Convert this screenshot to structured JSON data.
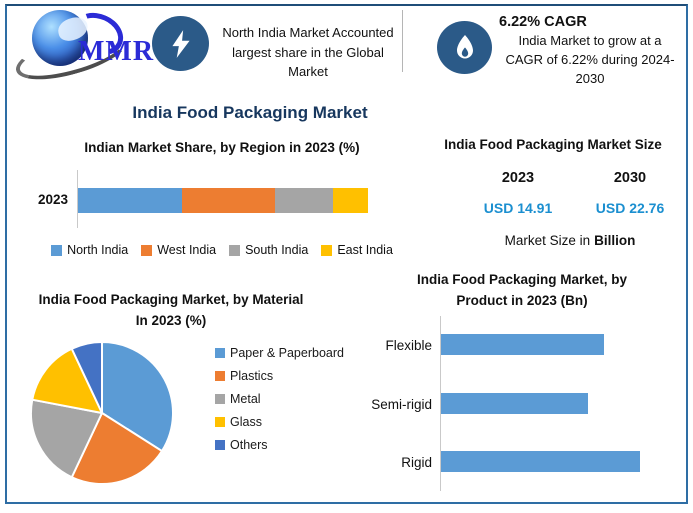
{
  "brand": {
    "name": "MMR"
  },
  "header": {
    "fact1": {
      "text": "North India Market Accounted largest share in the Global Market"
    },
    "fact2": {
      "title": "6.22% CAGR",
      "text": "India Market to grow at a CAGR of 6.22% during 2024-2030"
    }
  },
  "page_title": "India Food Packaging Market",
  "colors": {
    "title_navy": "#17375e",
    "icon_circle_blue": "#2b5a88",
    "value_blue": "#1b8fd0",
    "frame_blue": "#2e6da4",
    "bar_blue": "#5b9bd5"
  },
  "chart_data": [
    {
      "id": "region-share",
      "type": "bar",
      "orientation": "horizontal-stacked",
      "title": "Indian Market Share, by Region in 2023 (%)",
      "categories": [
        "2023"
      ],
      "series": [
        {
          "name": "North India",
          "color": "#5b9bd5",
          "values": [
            36
          ]
        },
        {
          "name": "West India",
          "color": "#ed7d31",
          "values": [
            32
          ]
        },
        {
          "name": "South India",
          "color": "#a5a5a5",
          "values": [
            20
          ]
        },
        {
          "name": "East India",
          "color": "#ffc000",
          "values": [
            12
          ]
        }
      ],
      "xlim": [
        0,
        100
      ],
      "grid": false,
      "legend_position": "bottom"
    },
    {
      "id": "market-size",
      "type": "table",
      "title": "India Food Packaging Market Size",
      "columns": [
        "2023",
        "2030"
      ],
      "values": [
        "USD 14.91",
        "USD 22.76"
      ],
      "note": "Market Size in",
      "note_bold": "Billion",
      "value_color": "#1b8fd0"
    },
    {
      "id": "material-share",
      "type": "pie",
      "title": "India Food Packaging Market, by Material In 2023 (%)",
      "labels": [
        "Paper & Paperboard",
        "Plastics",
        "Metal",
        "Glass",
        "Others"
      ],
      "values": [
        34,
        23,
        21,
        15,
        7
      ],
      "colors": [
        "#5b9bd5",
        "#ed7d31",
        "#a5a5a5",
        "#ffc000",
        "#4472c4"
      ],
      "start_angle_deg": 0,
      "direction": "clockwise",
      "legend_position": "right"
    },
    {
      "id": "product-size",
      "type": "bar",
      "orientation": "horizontal",
      "title": "India Food Packaging Market, by Product in 2023 (Bn)",
      "categories": [
        "Flexible",
        "Semi-rigid",
        "Rigid"
      ],
      "values_pct_of_max": [
        82,
        74,
        100
      ],
      "color": "#5b9bd5",
      "grid": false,
      "data_labels": false
    }
  ]
}
